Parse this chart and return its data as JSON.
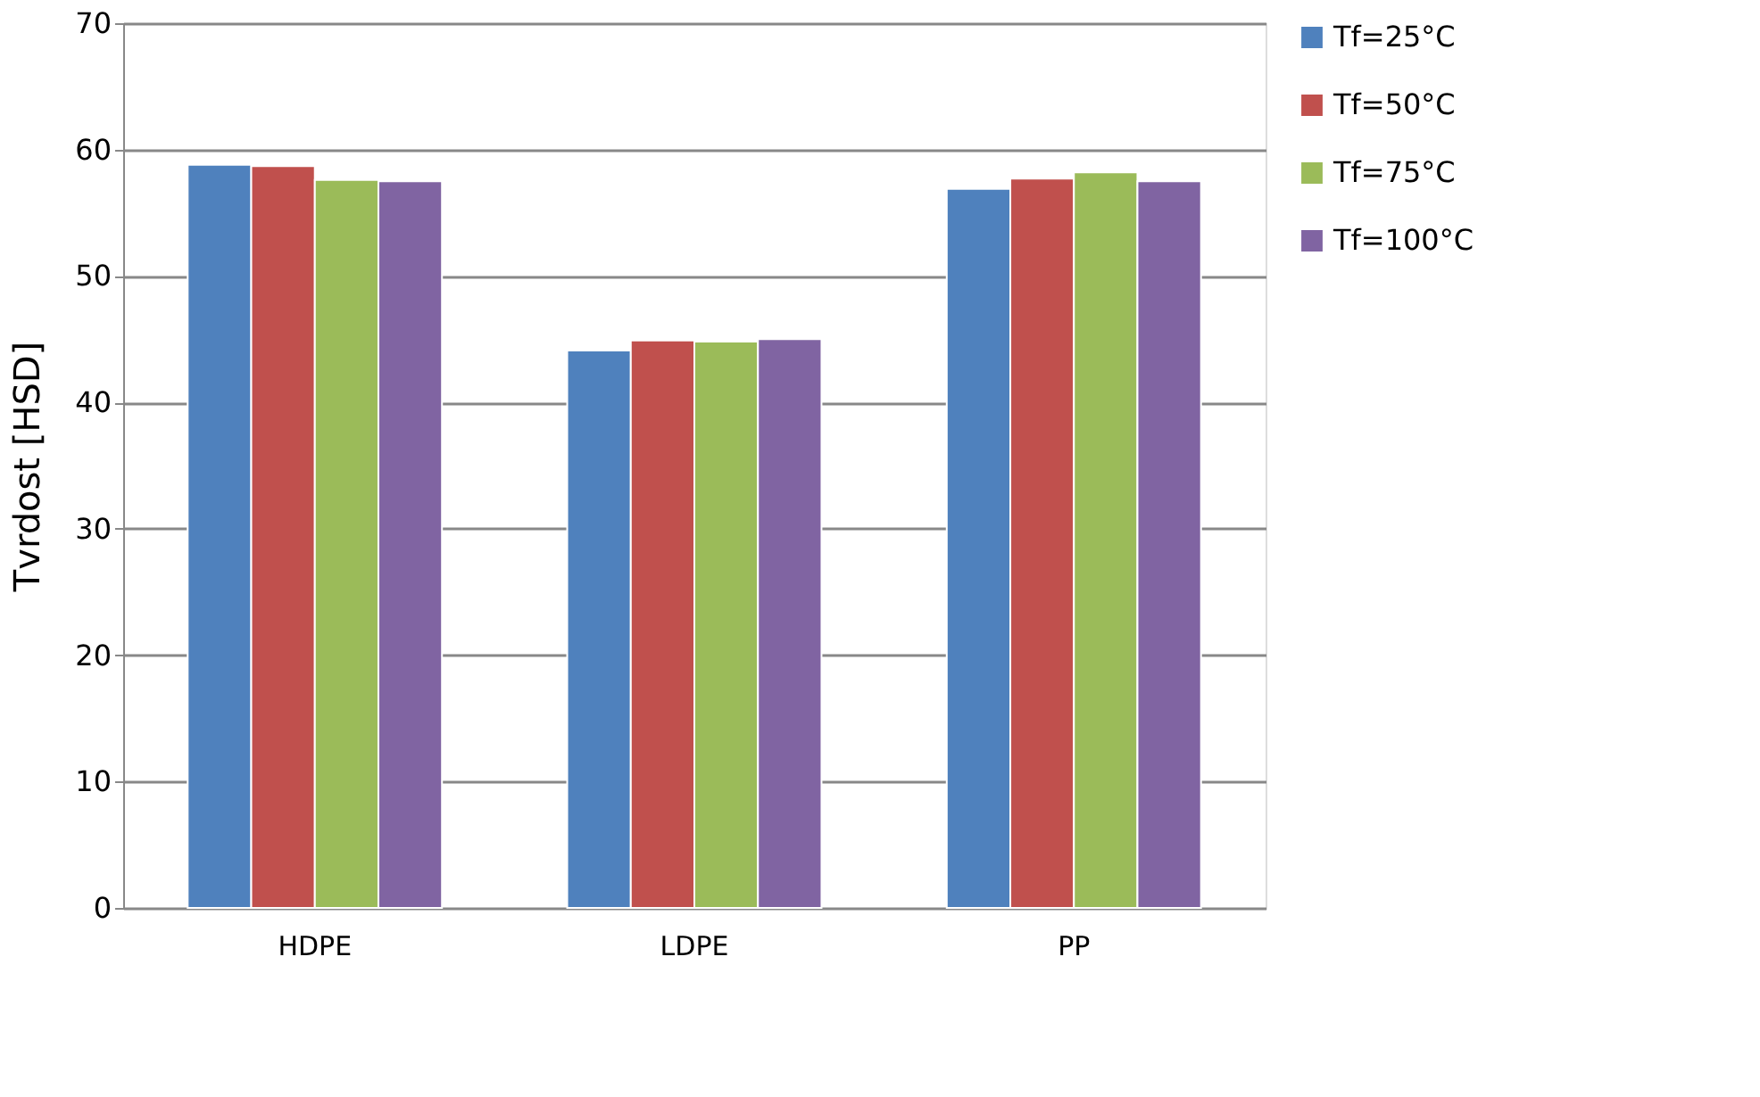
{
  "chart_data": {
    "type": "bar",
    "ylabel": "Tvrdost [HSD]",
    "categories": [
      "HDPE",
      "LDPE",
      "PP"
    ],
    "series": [
      {
        "name": "Tf=25°C",
        "color": "#4f81bd",
        "values": [
          58.8,
          44.1,
          56.9
        ]
      },
      {
        "name": "Tf=50°C",
        "color": "#c0504d",
        "values": [
          58.7,
          44.9,
          57.7
        ]
      },
      {
        "name": "Tf=75°C",
        "color": "#9bbb59",
        "values": [
          57.6,
          44.8,
          58.2
        ]
      },
      {
        "name": "Tf=100°C",
        "color": "#8064a2",
        "values": [
          57.5,
          45.0,
          57.5
        ]
      }
    ],
    "ylim": [
      0,
      70
    ],
    "yticks": [
      0,
      10,
      20,
      30,
      40,
      50,
      60,
      70
    ],
    "grid": "y",
    "legend": "right"
  }
}
